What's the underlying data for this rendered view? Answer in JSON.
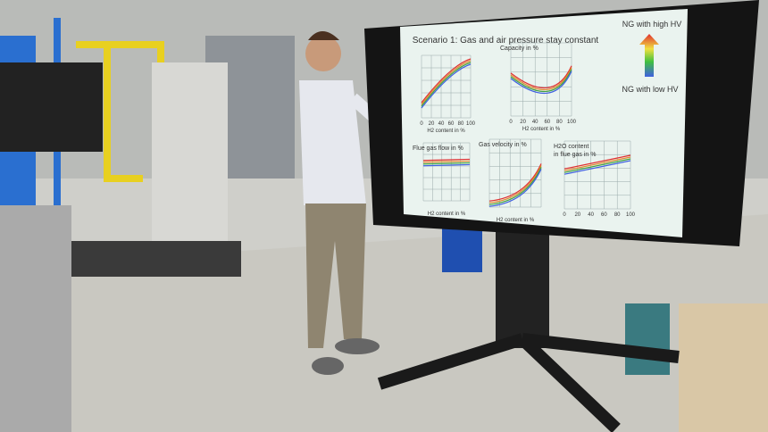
{
  "screen": {
    "title": "Scenario 1: Gas and air pressure stay constant",
    "legend": {
      "high": "NG with high HV",
      "low": "NG with low HV"
    },
    "panels": [
      {
        "x_label": "H2 content in %",
        "x_ticks": [
          0,
          20,
          40,
          60,
          80,
          100
        ]
      },
      {
        "label": [
          "Capacity in %"
        ],
        "x_label": "H2 content in %",
        "x_ticks": [
          0,
          20,
          40,
          60,
          80,
          100
        ]
      },
      {
        "label": [
          "Flue gas flow in %"
        ],
        "x_label": "H2 content in %"
      },
      {
        "label": [
          "Gas velocity in %"
        ],
        "x_label": "H2 content in %"
      },
      {
        "label": [
          "H2O content",
          "in flue gas in %"
        ],
        "x_ticks": [
          0,
          20,
          40,
          60,
          80,
          100
        ]
      }
    ]
  }
}
